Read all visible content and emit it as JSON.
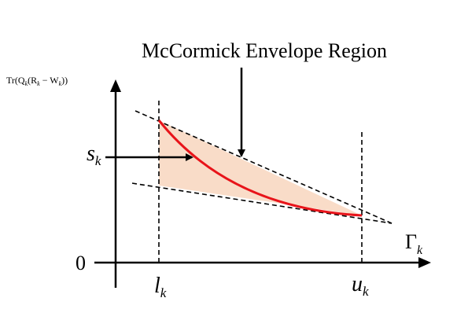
{
  "title": "McCormick Envelope Region",
  "y_axis_label": {
    "lead": "Tr(Q",
    "sub1": "k",
    "mid": "(R",
    "sub2": "k",
    "minus": " − W",
    "sub3": "k",
    "tail": "))"
  },
  "x_axis_label": {
    "base": "Γ",
    "sub": "k"
  },
  "origin_label": "0",
  "lower_bound_label": {
    "base": "l",
    "sub": "k"
  },
  "upper_bound_label": {
    "base": "u",
    "sub": "k"
  },
  "point_label": {
    "base": "s",
    "sub": "k"
  },
  "colors": {
    "region_fill": "#f9dcc8",
    "curve": "#e8141a",
    "ink": "#000000"
  }
}
